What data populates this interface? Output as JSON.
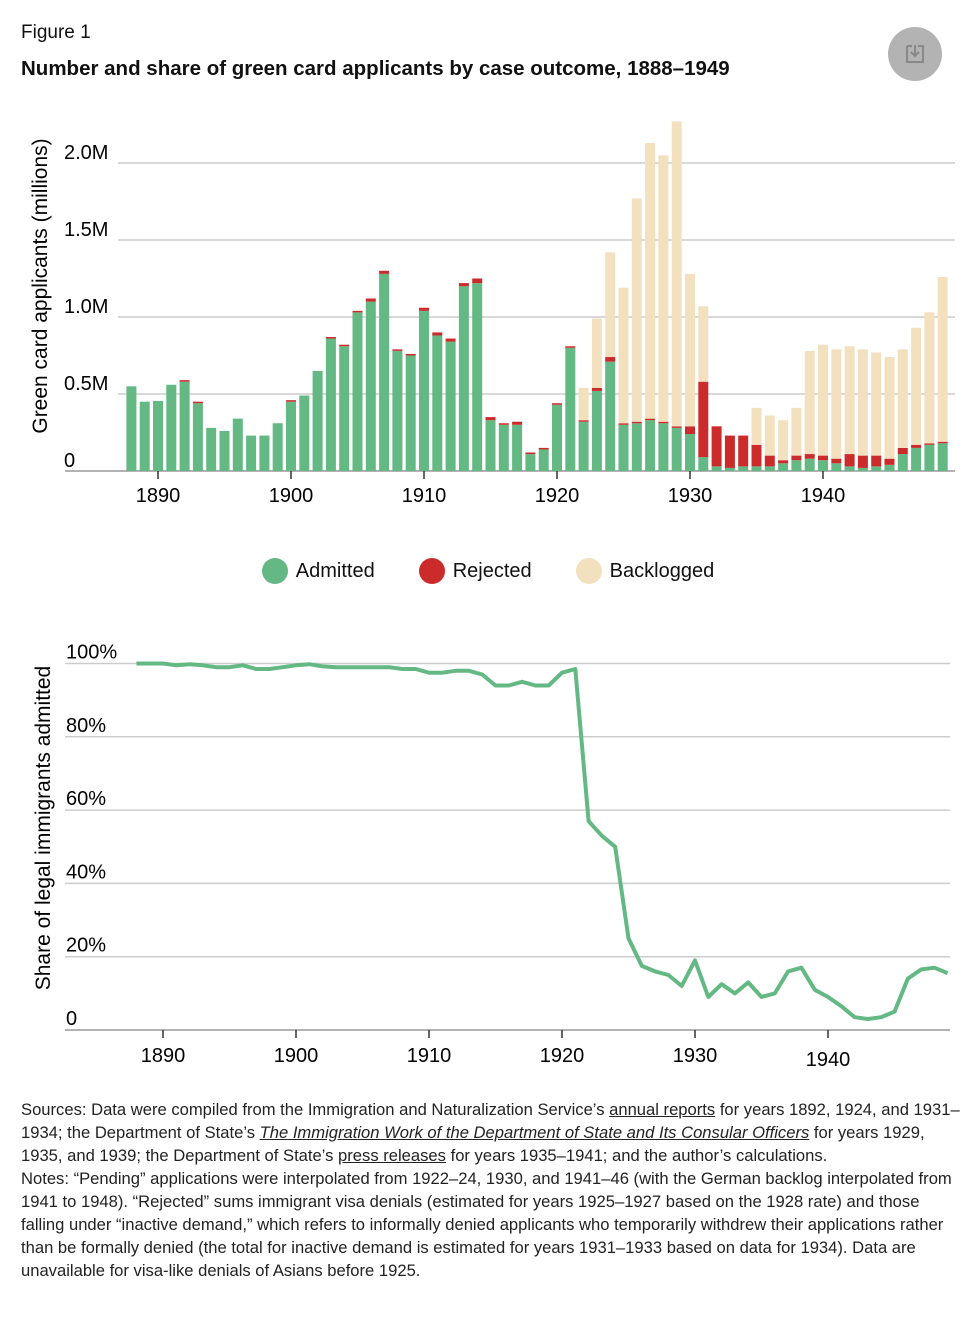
{
  "header": {
    "figure_label": "Figure 1",
    "title": "Number and share of green card applicants by case outcome, 1888–1949",
    "download_icon": "download-icon"
  },
  "colors": {
    "admitted": "#64b883",
    "rejected": "#cc2b2b",
    "backlogged": "#f3e0bf",
    "grid": "#cccccc"
  },
  "chart_data": [
    {
      "type": "bar",
      "stacked": true,
      "title": "",
      "ylabel": "Green card applicants (millions)",
      "xlabel": "",
      "ylim": [
        0,
        2.3
      ],
      "yticks": [
        {
          "v": 0,
          "label": "0"
        },
        {
          "v": 0.5,
          "label": "0.5M"
        },
        {
          "v": 1.0,
          "label": "1.0M"
        },
        {
          "v": 1.5,
          "label": "1.5M"
        },
        {
          "v": 2.0,
          "label": "2.0M"
        }
      ],
      "xticks": [
        {
          "v": 1890,
          "label": "1890"
        },
        {
          "v": 1900,
          "label": "1900"
        },
        {
          "v": 1910,
          "label": "1910"
        },
        {
          "v": 1920,
          "label": "1920"
        },
        {
          "v": 1930,
          "label": "1930"
        },
        {
          "v": 1940,
          "label": "1940"
        }
      ],
      "start_year": 1888,
      "series": [
        {
          "name": "Admitted",
          "values": [
            0.55,
            0.45,
            0.455,
            0.56,
            0.58,
            0.44,
            0.28,
            0.26,
            0.34,
            0.23,
            0.23,
            0.31,
            0.45,
            0.49,
            0.65,
            0.86,
            0.81,
            1.03,
            1.1,
            1.28,
            0.78,
            0.75,
            1.04,
            0.88,
            0.84,
            1.2,
            1.22,
            0.33,
            0.3,
            0.3,
            0.11,
            0.14,
            0.43,
            0.8,
            0.32,
            0.52,
            0.71,
            0.3,
            0.31,
            0.33,
            0.31,
            0.28,
            0.24,
            0.09,
            0.03,
            0.02,
            0.03,
            0.03,
            0.03,
            0.05,
            0.07,
            0.08,
            0.07,
            0.05,
            0.03,
            0.02,
            0.03,
            0.04,
            0.11,
            0.15,
            0.17,
            0.18
          ]
        },
        {
          "name": "Rejected",
          "values": [
            0,
            0,
            0,
            0,
            0.01,
            0.01,
            0,
            0,
            0,
            0,
            0,
            0,
            0.01,
            0,
            0,
            0.01,
            0.01,
            0.01,
            0.02,
            0.02,
            0.01,
            0.01,
            0.02,
            0.02,
            0.02,
            0.02,
            0.03,
            0.02,
            0.01,
            0.02,
            0.01,
            0.01,
            0.01,
            0.01,
            0.01,
            0.02,
            0.03,
            0.01,
            0.01,
            0.01,
            0.01,
            0.01,
            0.05,
            0.49,
            0.26,
            0.21,
            0.2,
            0.14,
            0.07,
            0.02,
            0.03,
            0.03,
            0.03,
            0.03,
            0.08,
            0.08,
            0.07,
            0.04,
            0.04,
            0.02,
            0.01,
            0.01
          ]
        },
        {
          "name": "Backlogged",
          "values": [
            0,
            0,
            0,
            0,
            0,
            0,
            0,
            0,
            0,
            0,
            0,
            0,
            0,
            0,
            0,
            0,
            0,
            0,
            0,
            0,
            0,
            0,
            0,
            0,
            0,
            0,
            0,
            0,
            0,
            0,
            0,
            0,
            0,
            0,
            0.21,
            0.45,
            0.68,
            0.88,
            1.45,
            1.79,
            1.73,
            1.98,
            0.99,
            0.49,
            0,
            0,
            0,
            0.24,
            0.26,
            0.26,
            0.31,
            0.67,
            0.72,
            0.71,
            0.7,
            0.69,
            0.67,
            0.66,
            0.64,
            0.76,
            0.85,
            1.07
          ]
        }
      ],
      "legend": [
        {
          "label": "Admitted"
        },
        {
          "label": "Rejected"
        },
        {
          "label": "Backlogged"
        }
      ],
      "legend_position": "bottom-center",
      "grid": true
    },
    {
      "type": "line",
      "ylabel": "Share of legal immigrants admitted",
      "ylim": [
        0,
        100
      ],
      "yticks": [
        {
          "v": 0,
          "label": "0"
        },
        {
          "v": 20,
          "label": "20%"
        },
        {
          "v": 40,
          "label": "40%"
        },
        {
          "v": 60,
          "label": "60%"
        },
        {
          "v": 80,
          "label": "80%"
        },
        {
          "v": 100,
          "label": "100%"
        }
      ],
      "xticks": [
        {
          "v": 1890,
          "label": "1890"
        },
        {
          "v": 1900,
          "label": "1900"
        },
        {
          "v": 1910,
          "label": "1910"
        },
        {
          "v": 1920,
          "label": "1920"
        },
        {
          "v": 1930,
          "label": "1930"
        },
        {
          "v": 1940,
          "label": "1940"
        }
      ],
      "start_year": 1888,
      "values": [
        100,
        100,
        100,
        99.5,
        99.8,
        99.5,
        99,
        99,
        99.5,
        98.5,
        98.5,
        99,
        99.5,
        99.8,
        99.2,
        99,
        99,
        99,
        99,
        99,
        98.5,
        98.5,
        97.5,
        97.5,
        98,
        98,
        97,
        94,
        94,
        95,
        94,
        94,
        97.5,
        98.5,
        57,
        53,
        50,
        25,
        17.5,
        16,
        15,
        12,
        19,
        9,
        12.5,
        10,
        13,
        9,
        10,
        16,
        17,
        11,
        9,
        6.5,
        3.5,
        3,
        3.5,
        5,
        14,
        16.5,
        17,
        15.5
      ],
      "grid": true
    }
  ],
  "notes": {
    "s1": "Sources: Data were compiled from the Immigration and Naturalization Service’s ",
    "l1": "annual reports",
    "s2": " for years 1892, 1924, and 1931–1934; the Department of State’s ",
    "l2": "The Immigration Work of the Department of State and Its Consular Officers",
    "s3": " for years 1929, 1935, and 1939; the Department of State’s ",
    "l3": "press releases",
    "s4": " for years 1935–1941; and the author’s calculations.",
    "n1": "Notes: “Pending” applications were interpolated from 1922–24, 1930, and 1941–46 (with the German backlog interpolated from 1941 to 1948). “Rejected” sums immigrant visa denials (estimated for years 1925–1927 based on the 1928 rate) and those falling under “inactive demand,” which refers to informally denied applicants who temporarily withdrew their applications rather than be formally denied (the total for inactive demand is estimated for years 1931–1933 based on data for 1934). Data are unavailable for visa-like denials of Asians before 1925."
  }
}
